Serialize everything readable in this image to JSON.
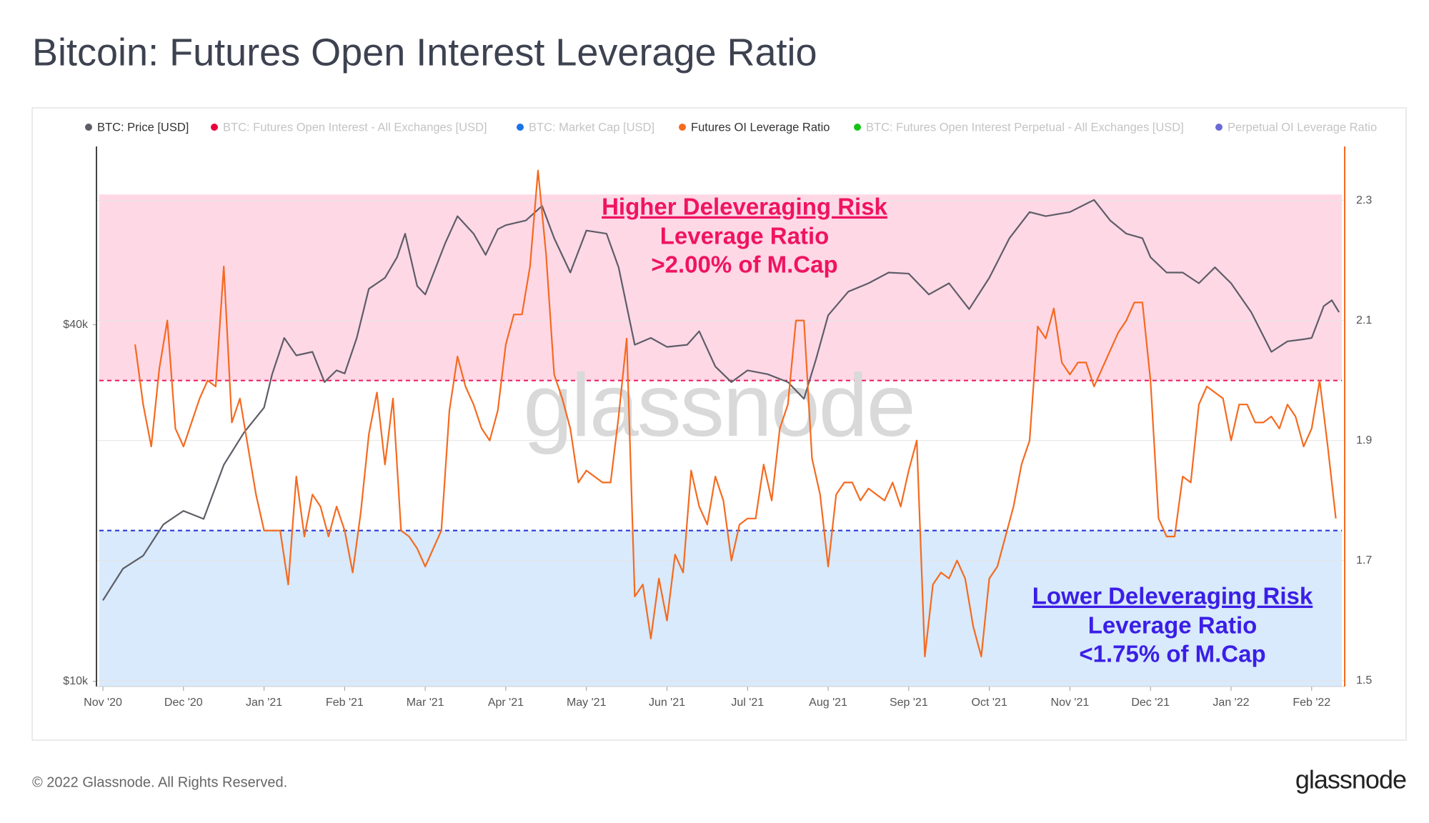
{
  "chart_data": {
    "type": "line",
    "title": "Bitcoin: Futures Open Interest Leverage Ratio",
    "ylog": true,
    "xlim": [
      -0.08,
      15.41
    ],
    "ylim": [
      9800,
      80000
    ],
    "y2lim": [
      1.49,
      2.39
    ],
    "xticks": [
      {
        "value": 0,
        "label": "Nov '20"
      },
      {
        "value": 1,
        "label": "Dec '20"
      },
      {
        "value": 2,
        "label": "Jan '21"
      },
      {
        "value": 3,
        "label": "Feb '21"
      },
      {
        "value": 4,
        "label": "Mar '21"
      },
      {
        "value": 5,
        "label": "Apr '21"
      },
      {
        "value": 6,
        "label": "May '21"
      },
      {
        "value": 7,
        "label": "Jun '21"
      },
      {
        "value": 8,
        "label": "Jul '21"
      },
      {
        "value": 9,
        "label": "Aug '21"
      },
      {
        "value": 10,
        "label": "Sep '21"
      },
      {
        "value": 11,
        "label": "Oct '21"
      },
      {
        "value": 12,
        "label": "Nov '21"
      },
      {
        "value": 13,
        "label": "Dec '21"
      },
      {
        "value": 14,
        "label": "Jan '22"
      },
      {
        "value": 15,
        "label": "Feb '22"
      }
    ],
    "yticks": [
      {
        "value": 10000,
        "label": "$10k"
      },
      {
        "value": 40000,
        "label": "$40k"
      }
    ],
    "y2ticks": [
      1.5,
      1.7,
      1.9,
      2.1,
      2.3
    ],
    "grid": true,
    "bands": [
      {
        "from": 2.0,
        "to": 2.31,
        "color": "#ffd8e6"
      },
      {
        "to": 1.75,
        "color": "#d8eafb"
      }
    ],
    "thresholds": [
      {
        "value": 2.0,
        "color": "#e8175d"
      },
      {
        "value": 1.75,
        "color": "#1f2fd6"
      }
    ],
    "annotations": [
      {
        "lines": [
          "Higher Deleveraging Risk",
          "Leverage Ratio",
          ">2.00% of M.Cap"
        ],
        "color": "#ef1460"
      },
      {
        "lines": [
          "Lower Deleveraging Risk",
          "Leverage Ratio",
          "<1.75% of M.Cap"
        ],
        "color": "#3b1ee6"
      }
    ],
    "watermark": "glassnode",
    "series": [
      {
        "name": "BTC: Price [USD]",
        "color": "#5d5d66",
        "x": [
          0,
          0.25,
          0.5,
          0.75,
          0.9,
          1,
          1.25,
          1.5,
          1.75,
          2,
          2.1,
          2.25,
          2.4,
          2.6,
          2.75,
          2.9,
          3,
          3.15,
          3.3,
          3.5,
          3.65,
          3.75,
          3.9,
          4,
          4.25,
          4.4,
          4.6,
          4.75,
          4.9,
          5,
          5.25,
          5.45,
          5.6,
          5.8,
          6,
          6.25,
          6.4,
          6.6,
          6.8,
          7,
          7.25,
          7.4,
          7.6,
          7.8,
          8,
          8.25,
          8.5,
          8.7,
          8.85,
          9,
          9.25,
          9.5,
          9.75,
          10,
          10.25,
          10.5,
          10.75,
          11,
          11.25,
          11.5,
          11.7,
          11.85,
          12,
          12.3,
          12.5,
          12.7,
          12.9,
          13,
          13.2,
          13.4,
          13.6,
          13.8,
          14,
          14.25,
          14.5,
          14.7,
          14.9,
          15,
          15.15,
          15.25,
          15.34
        ],
        "values": [
          13700,
          15500,
          16300,
          18400,
          19000,
          19400,
          18800,
          23200,
          26300,
          29000,
          33000,
          38000,
          35500,
          36000,
          32000,
          33500,
          33100,
          38000,
          46000,
          48000,
          52000,
          57000,
          46500,
          45000,
          55000,
          61000,
          57000,
          52500,
          58000,
          58900,
          60000,
          63500,
          56000,
          49000,
          57700,
          57000,
          50000,
          37000,
          38000,
          36700,
          37000,
          39000,
          34000,
          32000,
          33500,
          33000,
          32000,
          30000,
          35000,
          41500,
          45500,
          47000,
          49000,
          48800,
          45000,
          47000,
          42500,
          48000,
          56000,
          62000,
          61000,
          61500,
          62000,
          65000,
          60000,
          57000,
          56000,
          52000,
          49000,
          49000,
          47000,
          50000,
          47000,
          42000,
          36000,
          37500,
          37800,
          38000,
          43000,
          44000,
          42000
        ]
      },
      {
        "name": "BTC: Futures Open Interest - All Exchanges [USD]",
        "color": "#e8003d",
        "hidden": true
      },
      {
        "name": "BTC: Market Cap [USD]",
        "color": "#1a73e8",
        "hidden": true
      },
      {
        "name": "Futures OI Leverage Ratio",
        "color": "#f56a1f",
        "axis": "y2",
        "x": [
          0.4,
          0.5,
          0.6,
          0.7,
          0.8,
          0.9,
          1.0,
          1.1,
          1.2,
          1.3,
          1.4,
          1.5,
          1.6,
          1.7,
          1.8,
          1.9,
          2.0,
          2.1,
          2.2,
          2.3,
          2.4,
          2.5,
          2.6,
          2.7,
          2.8,
          2.9,
          3.0,
          3.1,
          3.2,
          3.3,
          3.4,
          3.5,
          3.6,
          3.7,
          3.8,
          3.9,
          4.0,
          4.1,
          4.2,
          4.3,
          4.4,
          4.5,
          4.6,
          4.7,
          4.8,
          4.9,
          5.0,
          5.1,
          5.2,
          5.3,
          5.4,
          5.5,
          5.6,
          5.7,
          5.8,
          5.9,
          6.0,
          6.1,
          6.2,
          6.3,
          6.4,
          6.5,
          6.6,
          6.7,
          6.8,
          6.9,
          7.0,
          7.1,
          7.2,
          7.3,
          7.4,
          7.5,
          7.6,
          7.7,
          7.8,
          7.9,
          8.0,
          8.1,
          8.2,
          8.3,
          8.4,
          8.5,
          8.6,
          8.7,
          8.8,
          8.9,
          9.0,
          9.1,
          9.2,
          9.3,
          9.4,
          9.5,
          9.6,
          9.7,
          9.8,
          9.9,
          10.0,
          10.1,
          10.2,
          10.3,
          10.4,
          10.5,
          10.6,
          10.7,
          10.8,
          10.9,
          11.0,
          11.1,
          11.2,
          11.3,
          11.4,
          11.5,
          11.6,
          11.7,
          11.8,
          11.9,
          12.0,
          12.1,
          12.2,
          12.3,
          12.4,
          12.5,
          12.6,
          12.7,
          12.8,
          12.9,
          13.0,
          13.1,
          13.2,
          13.3,
          13.4,
          13.5,
          13.6,
          13.7,
          13.8,
          13.9,
          14.0,
          14.1,
          14.2,
          14.3,
          14.4,
          14.5,
          14.6,
          14.7,
          14.8,
          14.9,
          15.0,
          15.1,
          15.2,
          15.3
        ],
        "values": [
          2.06,
          1.96,
          1.89,
          2.02,
          2.1,
          1.92,
          1.89,
          1.93,
          1.97,
          2.0,
          1.99,
          2.19,
          1.93,
          1.97,
          1.89,
          1.81,
          1.75,
          1.75,
          1.75,
          1.66,
          1.84,
          1.74,
          1.81,
          1.79,
          1.74,
          1.79,
          1.75,
          1.68,
          1.78,
          1.91,
          1.98,
          1.86,
          1.97,
          1.75,
          1.74,
          1.72,
          1.69,
          1.72,
          1.75,
          1.95,
          2.04,
          1.99,
          1.96,
          1.92,
          1.9,
          1.95,
          2.06,
          2.11,
          2.11,
          2.19,
          2.35,
          2.21,
          2.01,
          1.97,
          1.92,
          1.83,
          1.85,
          1.84,
          1.83,
          1.83,
          1.94,
          2.07,
          1.64,
          1.66,
          1.57,
          1.67,
          1.6,
          1.71,
          1.68,
          1.85,
          1.79,
          1.76,
          1.84,
          1.8,
          1.7,
          1.76,
          1.77,
          1.77,
          1.86,
          1.8,
          1.92,
          1.96,
          2.1,
          2.1,
          1.87,
          1.81,
          1.69,
          1.81,
          1.83,
          1.83,
          1.8,
          1.82,
          1.81,
          1.8,
          1.83,
          1.79,
          1.85,
          1.9,
          1.54,
          1.66,
          1.68,
          1.67,
          1.7,
          1.67,
          1.59,
          1.54,
          1.67,
          1.69,
          1.74,
          1.79,
          1.86,
          1.9,
          2.09,
          2.07,
          2.12,
          2.03,
          2.01,
          2.03,
          2.03,
          1.99,
          2.02,
          2.05,
          2.08,
          2.1,
          2.13,
          2.13,
          2.0,
          1.77,
          1.74,
          1.74,
          1.84,
          1.83,
          1.96,
          1.99,
          1.98,
          1.97,
          1.9,
          1.96,
          1.96,
          1.93,
          1.93,
          1.94,
          1.92,
          1.96,
          1.94,
          1.89,
          1.92,
          2.0,
          1.89,
          1.77
        ]
      },
      {
        "name": "BTC: Futures Open Interest Perpetual - All Exchanges [USD]",
        "color": "#16c416",
        "hidden": true
      },
      {
        "name": "Perpetual OI Leverage Ratio",
        "color": "#6a6ad6",
        "hidden": true
      }
    ]
  },
  "footer": {
    "copyright": "© 2022 Glassnode. All Rights Reserved.",
    "logo": "glassnode"
  }
}
